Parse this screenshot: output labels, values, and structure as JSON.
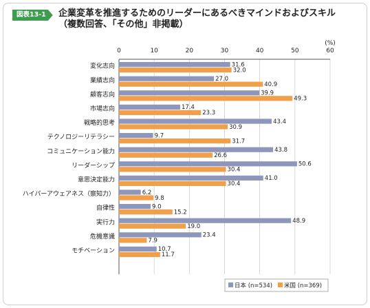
{
  "figure_label": "図表13-1",
  "title": "企業変革を推進するためのリーダーにあるべきマインドおよびスキル",
  "subtitle": "（複数回答、「その他」非掲載）",
  "colors": {
    "japan": "#8e97bb",
    "us": "#f0a04b",
    "badge": "#3f9b4d"
  },
  "chart_data": {
    "type": "bar",
    "orientation": "horizontal",
    "unit": "(%)",
    "xlim": [
      0,
      60
    ],
    "ticks": [
      0,
      10,
      20,
      30,
      40,
      50,
      60
    ],
    "categories": [
      "変化志向",
      "業績志向",
      "顧客志向",
      "市場志向",
      "戦略的思考",
      "テクノロジーリテラシー",
      "コミュニケーション能力",
      "リーダーシップ",
      "意思決定能力",
      "ハイパーアウェアネス（察知力）",
      "自律性",
      "実行力",
      "危機意識",
      "モチベーション"
    ],
    "series": [
      {
        "name": "日本 (n=534)",
        "values": [
          31.6,
          27.0,
          39.9,
          17.4,
          43.4,
          9.7,
          43.8,
          50.6,
          41.0,
          6.2,
          9.0,
          48.9,
          23.4,
          10.7
        ]
      },
      {
        "name": "米国 (n=369)",
        "values": [
          32.0,
          40.9,
          49.3,
          23.3,
          30.9,
          31.7,
          26.6,
          30.4,
          30.4,
          9.8,
          15.2,
          19.0,
          7.9,
          11.7
        ]
      }
    ],
    "legend_position": "bottom-right",
    "grid": true
  }
}
